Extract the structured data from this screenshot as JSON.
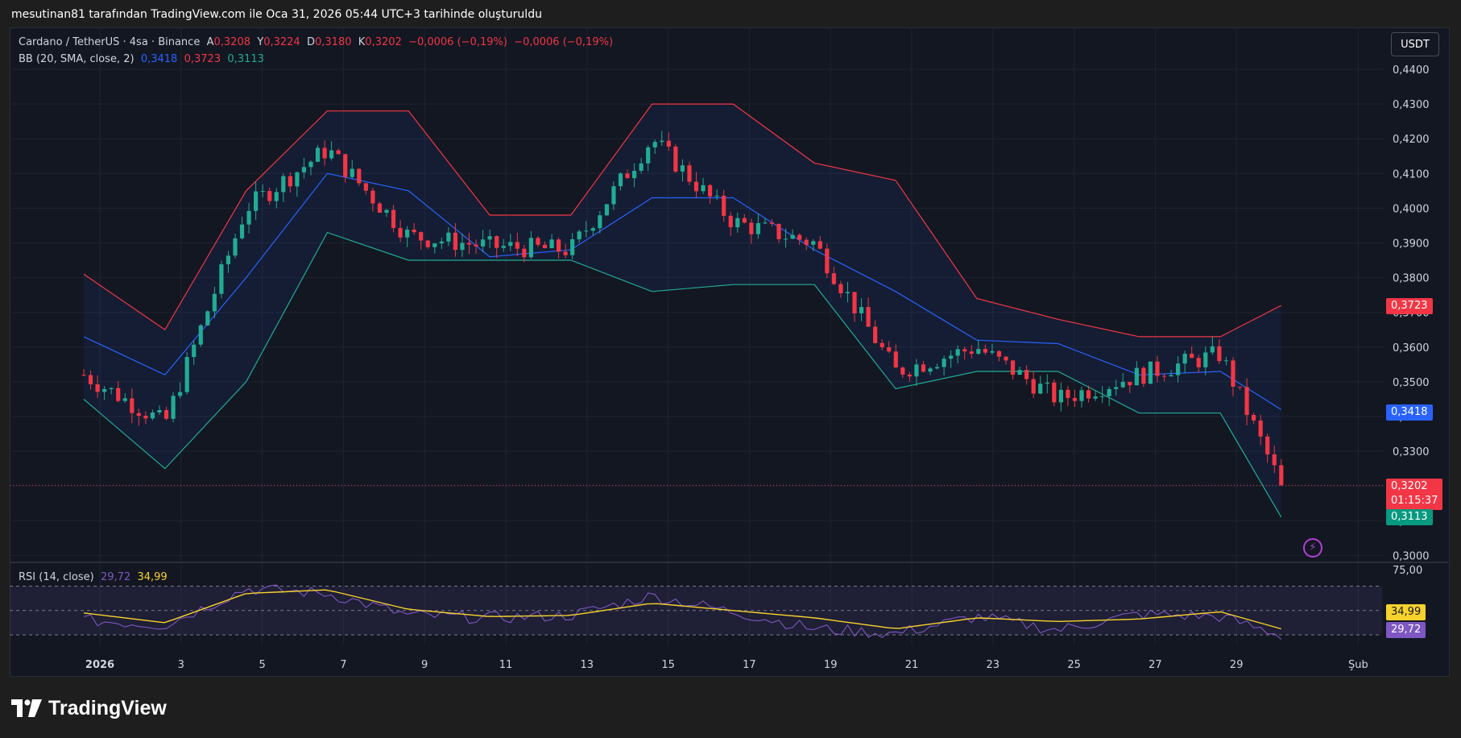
{
  "header": {
    "caption": "mesutinan81 tarafından TradingView.com ile Oca 31, 2026 05:44 UTC+3 tarihinde oluşturuldu"
  },
  "legend": {
    "symbol": "Cardano / TetherUS · 4sa · Binance",
    "o_label": "A",
    "o_value": "0,3208",
    "h_label": "Y",
    "h_value": "0,3224",
    "l_label": "D",
    "l_value": "0,3180",
    "c_label": "K",
    "c_value": "0,3202",
    "change1": "−0,0006 (−0,19%)",
    "change2": "−0,0006 (−0,19%)"
  },
  "bb_legend": {
    "name": "BB (20, SMA, close, 2)",
    "basis": "0,3418",
    "upper": "0,3723",
    "lower": "0,3113"
  },
  "rsi_legend": {
    "name": "RSI (14, close)",
    "rsi": "29,72",
    "ma": "34,99"
  },
  "currency_button": "USDT",
  "price_tags": {
    "upper": "0,3723",
    "basis": "0,3418",
    "last": "0,3202",
    "countdown": "01:15:37",
    "lower": "0,3113",
    "rsi_ma": "34,99",
    "rsi": "29,72"
  },
  "logo_text": "TradingView",
  "colors": {
    "up": "#22ab94",
    "down": "#f23645",
    "upper_band": "#f23645",
    "basis": "#2962ff",
    "lower_band": "#22ab94",
    "rsi": "#7e57c2",
    "rsi_ma": "#f7d22d",
    "background": "#131722"
  },
  "chart_data": [
    {
      "type": "line",
      "title": "Cardano / TetherUS · 4sa · Binance",
      "price_axis_ticks": [
        "0,4400",
        "0,4300",
        "0,4200",
        "0,4100",
        "0,4000",
        "0,3900",
        "0,3800",
        "0,3700",
        "0,3600",
        "0,3500",
        "0,3400",
        "0,3300",
        "0,3200",
        "0,3100",
        "0,3000"
      ],
      "time_axis_ticks": [
        "2026",
        "3",
        "5",
        "7",
        "9",
        "11",
        "13",
        "15",
        "17",
        "19",
        "21",
        "23",
        "25",
        "27",
        "29",
        "Şub"
      ],
      "ylim": [
        0.296,
        0.447
      ],
      "series": [
        {
          "name": "BB upper",
          "x": [
            1,
            3,
            5,
            7,
            9,
            11,
            13,
            15,
            17,
            19,
            21,
            23,
            25,
            27,
            29,
            30.5
          ],
          "values": [
            0.381,
            0.365,
            0.405,
            0.428,
            0.428,
            0.398,
            0.398,
            0.43,
            0.43,
            0.413,
            0.408,
            0.374,
            0.368,
            0.363,
            0.363,
            0.372
          ]
        },
        {
          "name": "BB basis",
          "x": [
            1,
            3,
            5,
            7,
            9,
            11,
            13,
            15,
            17,
            19,
            21,
            23,
            25,
            27,
            29,
            30.5
          ],
          "values": [
            0.363,
            0.352,
            0.38,
            0.41,
            0.405,
            0.386,
            0.388,
            0.403,
            0.403,
            0.388,
            0.376,
            0.362,
            0.361,
            0.352,
            0.353,
            0.342
          ]
        },
        {
          "name": "BB lower",
          "x": [
            1,
            3,
            5,
            7,
            9,
            11,
            13,
            15,
            17,
            19,
            21,
            23,
            25,
            27,
            29,
            30.5
          ],
          "values": [
            0.345,
            0.325,
            0.35,
            0.393,
            0.385,
            0.385,
            0.385,
            0.376,
            0.378,
            0.378,
            0.348,
            0.353,
            0.353,
            0.341,
            0.341,
            0.311
          ]
        },
        {
          "name": "Close",
          "x": [
            1,
            3,
            5,
            7,
            9,
            11,
            13,
            15,
            17,
            19,
            21,
            23,
            25,
            27,
            29,
            30.5
          ],
          "values": [
            0.352,
            0.338,
            0.4,
            0.417,
            0.392,
            0.389,
            0.388,
            0.42,
            0.396,
            0.39,
            0.353,
            0.36,
            0.345,
            0.352,
            0.358,
            0.3202
          ]
        }
      ]
    },
    {
      "type": "line",
      "title": "RSI (14, close)",
      "rsi_axis_ticks": [
        "75,00"
      ],
      "ylim": [
        0,
        100
      ],
      "levels": [
        70,
        50,
        30
      ],
      "series": [
        {
          "name": "RSI",
          "x": [
            1,
            3,
            5,
            7,
            9,
            11,
            13,
            15,
            17,
            19,
            21,
            23,
            25,
            27,
            29,
            30.5
          ],
          "values": [
            42,
            38,
            68,
            64,
            46,
            44,
            46,
            62,
            49,
            35,
            31,
            45,
            34,
            47,
            45,
            29.72
          ]
        },
        {
          "name": "RSI MA",
          "x": [
            1,
            3,
            5,
            7,
            9,
            11,
            13,
            15,
            17,
            19,
            21,
            23,
            25,
            27,
            29,
            30.5
          ],
          "values": [
            48,
            40,
            64,
            67,
            51,
            45,
            46,
            56,
            50,
            44,
            35,
            44,
            41,
            43,
            49,
            34.99
          ]
        }
      ]
    }
  ]
}
